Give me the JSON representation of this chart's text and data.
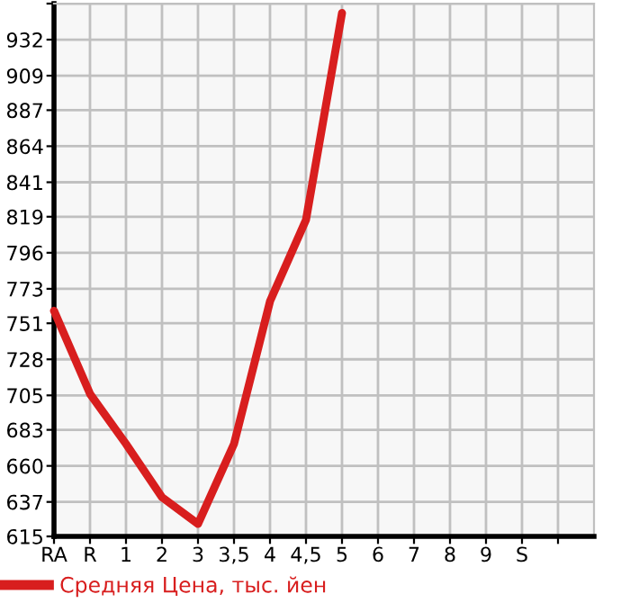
{
  "chart_data": {
    "type": "line",
    "categories": [
      "RA",
      "R",
      "1",
      "2",
      "3",
      "3,5",
      "4",
      "4,5",
      "5",
      "6",
      "7",
      "8",
      "9",
      "S",
      null
    ],
    "series": [
      {
        "name": "Средняя Цена, тыс. йен",
        "color": "#d81e1e",
        "values": [
          759,
          706,
          674,
          640,
          623,
          674,
          765,
          817,
          949,
          null,
          null,
          null,
          null,
          null,
          null
        ]
      }
    ],
    "ylim": [
      615,
      955
    ],
    "yticks": [
      615,
      637,
      660,
      683,
      705,
      728,
      751,
      773,
      796,
      819,
      841,
      864,
      887,
      909,
      932,
      {
        "value": 955,
        "label": null
      }
    ],
    "grid": true,
    "legend": "bottom",
    "marker": "none",
    "line_style": "solid"
  }
}
